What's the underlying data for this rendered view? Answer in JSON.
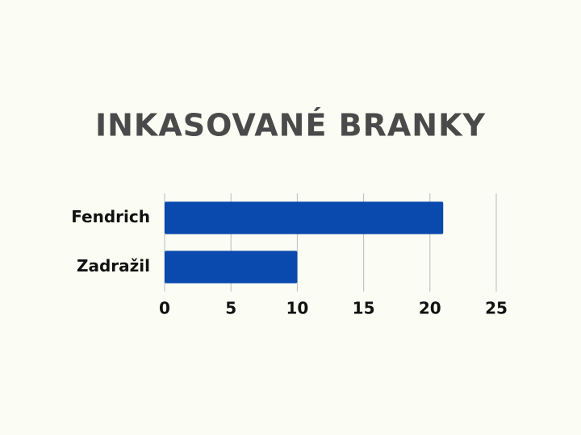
{
  "chart_data": {
    "type": "bar",
    "orientation": "horizontal",
    "title": "INKASOVANÉ BRANKY",
    "categories": [
      "Fendrich",
      "Zadražil"
    ],
    "values": [
      21,
      10
    ],
    "color": "#0a49ad",
    "xlim": [
      0,
      25
    ],
    "xticks": [
      0,
      5,
      10,
      15,
      20,
      25
    ],
    "grid": true
  }
}
